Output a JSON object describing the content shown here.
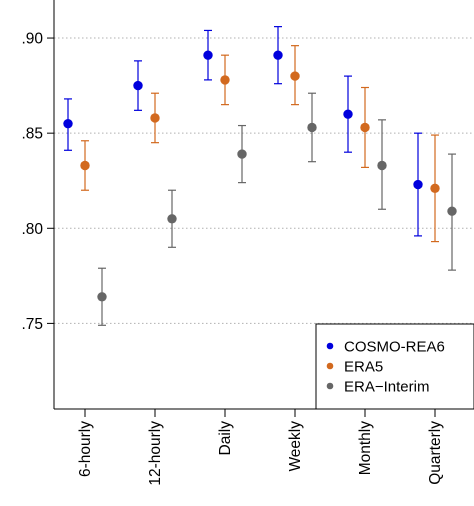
{
  "chart_data": {
    "type": "scatter",
    "title": "",
    "xlabel": "",
    "ylabel": "",
    "categories": [
      "6-hourly",
      "12-hourly",
      "Daily",
      "Weekly",
      "Monthly",
      "Quarterly"
    ],
    "ylim": [
      0.705,
      0.92
    ],
    "yticks": [
      0.75,
      0.8,
      0.85,
      0.9
    ],
    "ytick_labels": [
      ".75",
      ".80",
      ".85",
      ".90"
    ],
    "grid": "horizontal dotted at y ticks",
    "legend_position": "bottom-right",
    "series": [
      {
        "name": "COSMO-REA6",
        "color": "#0000dd",
        "values": [
          0.855,
          0.875,
          0.891,
          0.891,
          0.86,
          0.823
        ],
        "lower": [
          0.841,
          0.862,
          0.878,
          0.876,
          0.84,
          0.796
        ],
        "upper": [
          0.868,
          0.888,
          0.904,
          0.906,
          0.88,
          0.85
        ]
      },
      {
        "name": "ERA5",
        "color": "#d2691e",
        "values": [
          0.833,
          0.858,
          0.878,
          0.88,
          0.853,
          0.821
        ],
        "lower": [
          0.82,
          0.845,
          0.865,
          0.865,
          0.832,
          0.793
        ],
        "upper": [
          0.846,
          0.871,
          0.891,
          0.896,
          0.874,
          0.849
        ]
      },
      {
        "name": "ERA−Interim",
        "color": "#666666",
        "values": [
          0.764,
          0.805,
          0.839,
          0.853,
          0.833,
          0.809
        ],
        "lower": [
          0.749,
          0.79,
          0.824,
          0.835,
          0.81,
          0.778
        ],
        "upper": [
          0.779,
          0.82,
          0.854,
          0.871,
          0.857,
          0.839
        ]
      }
    ]
  }
}
